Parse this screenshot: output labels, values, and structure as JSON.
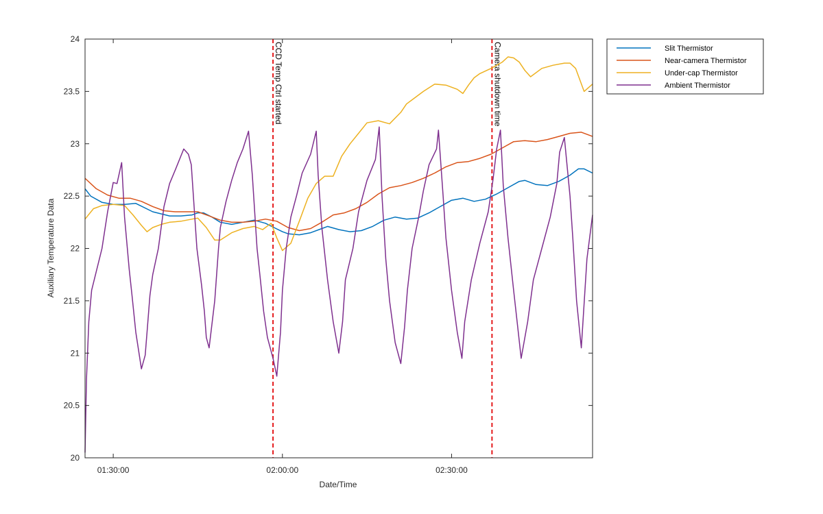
{
  "chart_data": {
    "type": "line",
    "title": "",
    "xlabel": "Date/Time",
    "ylabel": "Auxiliary Temperature Data",
    "xlim": [
      "01:25:00",
      "02:55:00"
    ],
    "ylim": [
      20,
      24
    ],
    "grid": false,
    "legend_position": "outside-top-right",
    "x_ticks": [
      {
        "time": "01:30:00",
        "label": "01:30:00"
      },
      {
        "time": "02:00:00",
        "label": "02:00:00"
      },
      {
        "time": "02:30:00",
        "label": "02:30:00"
      }
    ],
    "y_ticks": [
      {
        "value": 20,
        "label": "20"
      },
      {
        "value": 20.5,
        "label": "20.5"
      },
      {
        "value": 21,
        "label": "21"
      },
      {
        "value": 21.5,
        "label": "21.5"
      },
      {
        "value": 22,
        "label": "22"
      },
      {
        "value": 22.5,
        "label": "22.5"
      },
      {
        "value": 23,
        "label": "23"
      },
      {
        "value": 23.5,
        "label": "23.5"
      },
      {
        "value": 24,
        "label": "24"
      }
    ],
    "annotations": [
      {
        "time": "01:58:20",
        "label": "CCD Temp Ctrl started",
        "color": "#e41a1c"
      },
      {
        "time": "02:37:10",
        "label": "Camera shutdown time",
        "color": "#e41a1c"
      }
    ],
    "series": [
      {
        "name": "Slit Thermistor",
        "color": "#0072bd",
        "x": [
          "01:25:00",
          "01:26:00",
          "01:28:00",
          "01:30:00",
          "01:32:00",
          "01:34:00",
          "01:37:00",
          "01:40:00",
          "01:42:00",
          "01:44:00",
          "01:45:00",
          "01:46:00",
          "01:47:30",
          "01:49:00",
          "01:51:00",
          "01:53:00",
          "01:55:00",
          "01:57:00",
          "01:58:30",
          "02:00:00",
          "02:01:00",
          "02:03:00",
          "02:05:00",
          "02:07:00",
          "02:08:00",
          "02:10:00",
          "02:12:00",
          "02:14:00",
          "02:16:00",
          "02:18:00",
          "02:20:00",
          "02:22:00",
          "02:24:00",
          "02:26:00",
          "02:28:00",
          "02:30:00",
          "02:32:00",
          "02:34:00",
          "02:36:00",
          "02:38:00",
          "02:40:00",
          "02:42:00",
          "02:43:00",
          "02:45:00",
          "02:47:00",
          "02:49:00",
          "02:51:00",
          "02:52:30",
          "02:53:30",
          "02:55:00"
        ],
        "values": [
          22.57,
          22.5,
          22.44,
          22.42,
          22.42,
          22.43,
          22.35,
          22.31,
          22.31,
          22.32,
          22.34,
          22.34,
          22.3,
          22.25,
          22.23,
          22.25,
          22.27,
          22.24,
          22.2,
          22.16,
          22.14,
          22.13,
          22.15,
          22.19,
          22.21,
          22.18,
          22.16,
          22.17,
          22.21,
          22.27,
          22.3,
          22.28,
          22.29,
          22.34,
          22.4,
          22.46,
          22.48,
          22.45,
          22.47,
          22.52,
          22.58,
          22.64,
          22.65,
          22.61,
          22.6,
          22.64,
          22.7,
          22.76,
          22.76,
          22.72
        ]
      },
      {
        "name": "Near-camera Thermistor",
        "color": "#d95319",
        "x": [
          "01:25:00",
          "01:27:00",
          "01:29:00",
          "01:31:00",
          "01:33:00",
          "01:35:00",
          "01:37:00",
          "01:39:00",
          "01:41:00",
          "01:43:00",
          "01:45:00",
          "01:47:00",
          "01:49:00",
          "01:51:00",
          "01:53:00",
          "01:55:00",
          "01:57:00",
          "01:59:00",
          "02:01:00",
          "02:03:00",
          "02:05:00",
          "02:07:00",
          "02:09:00",
          "02:11:00",
          "02:13:00",
          "02:15:00",
          "02:17:00",
          "02:19:00",
          "02:21:00",
          "02:23:00",
          "02:25:00",
          "02:27:00",
          "02:29:00",
          "02:31:00",
          "02:33:00",
          "02:35:00",
          "02:37:00",
          "02:39:00",
          "02:41:00",
          "02:43:00",
          "02:45:00",
          "02:47:00",
          "02:49:00",
          "02:51:00",
          "02:53:00",
          "02:55:00"
        ],
        "values": [
          22.67,
          22.57,
          22.51,
          22.48,
          22.48,
          22.45,
          22.4,
          22.36,
          22.35,
          22.35,
          22.35,
          22.31,
          22.27,
          22.25,
          22.25,
          22.26,
          22.28,
          22.26,
          22.2,
          22.17,
          22.19,
          22.25,
          22.32,
          22.34,
          22.38,
          22.44,
          22.52,
          22.58,
          22.6,
          22.63,
          22.67,
          22.72,
          22.78,
          22.82,
          22.83,
          22.86,
          22.9,
          22.96,
          23.02,
          23.03,
          23.02,
          23.04,
          23.07,
          23.1,
          23.11,
          23.07
        ]
      },
      {
        "name": "Under-cap Thermistor",
        "color": "#edb120",
        "x": [
          "01:25:00",
          "01:26:30",
          "01:28:00",
          "01:30:00",
          "01:32:00",
          "01:33:30",
          "01:35:00",
          "01:36:00",
          "01:37:00",
          "01:38:30",
          "01:40:00",
          "01:42:00",
          "01:44:00",
          "01:45:00",
          "01:46:30",
          "01:48:00",
          "01:49:00",
          "01:51:00",
          "01:53:00",
          "01:55:00",
          "01:56:30",
          "01:58:00",
          "01:59:00",
          "02:00:00",
          "02:01:30",
          "02:03:00",
          "02:04:30",
          "02:06:00",
          "02:07:30",
          "02:09:00",
          "02:10:30",
          "02:12:00",
          "02:13:30",
          "02:15:00",
          "02:17:00",
          "02:19:00",
          "02:21:00",
          "02:22:00",
          "02:23:00",
          "02:25:00",
          "02:27:00",
          "02:29:00",
          "02:31:00",
          "02:32:00",
          "02:33:00",
          "02:34:00",
          "02:35:00",
          "02:37:00",
          "02:39:00",
          "02:40:00",
          "02:41:00",
          "02:42:00",
          "02:43:00",
          "02:44:00",
          "02:46:00",
          "02:48:00",
          "02:50:00",
          "02:51:00",
          "02:52:00",
          "02:53:30",
          "02:55:00"
        ],
        "values": [
          22.28,
          22.38,
          22.41,
          22.42,
          22.41,
          22.32,
          22.22,
          22.16,
          22.2,
          22.23,
          22.25,
          22.26,
          22.28,
          22.29,
          22.2,
          22.08,
          22.08,
          22.15,
          22.19,
          22.21,
          22.18,
          22.24,
          22.1,
          21.98,
          22.05,
          22.26,
          22.48,
          22.62,
          22.69,
          22.69,
          22.88,
          23.0,
          23.1,
          23.2,
          23.22,
          23.19,
          23.3,
          23.38,
          23.42,
          23.5,
          23.57,
          23.56,
          23.52,
          23.48,
          23.56,
          23.63,
          23.67,
          23.72,
          23.78,
          23.83,
          23.82,
          23.78,
          23.7,
          23.64,
          23.72,
          23.75,
          23.77,
          23.77,
          23.72,
          23.5,
          23.57
        ]
      },
      {
        "name": "Ambient Thermistor",
        "color": "#7e2f8e",
        "x": [
          "01:25:00",
          "01:25:15",
          "01:25:40",
          "01:26:10",
          "01:27:00",
          "01:28:00",
          "01:29:00",
          "01:30:00",
          "01:30:40",
          "01:31:30",
          "01:32:00",
          "01:32:50",
          "01:33:20",
          "01:34:00",
          "01:35:00",
          "01:35:40",
          "01:36:00",
          "01:36:30",
          "01:37:00",
          "01:38:00",
          "01:39:00",
          "01:40:00",
          "01:41:00",
          "01:42:30",
          "01:43:20",
          "01:43:50",
          "01:44:50",
          "01:45:40",
          "01:46:10",
          "01:46:30",
          "01:47:00",
          "01:48:00",
          "01:48:40",
          "01:49:00",
          "01:50:00",
          "01:51:00",
          "01:52:00",
          "01:53:00",
          "01:54:00",
          "01:54:40",
          "01:55:30",
          "01:56:00",
          "01:56:40",
          "01:57:20",
          "01:58:20",
          "01:59:00",
          "01:59:40",
          "02:00:00",
          "02:00:40",
          "02:01:30",
          "02:02:30",
          "02:03:30",
          "02:05:00",
          "02:06:00",
          "02:06:20",
          "02:07:00",
          "02:08:00",
          "02:09:00",
          "02:10:00",
          "02:10:40",
          "02:11:10",
          "02:12:30",
          "02:13:30",
          "02:15:00",
          "02:16:30",
          "02:17:10",
          "02:17:40",
          "02:18:20",
          "02:19:00",
          "02:20:00",
          "02:21:00",
          "02:21:40",
          "02:22:10",
          "02:23:00",
          "02:24:10",
          "02:25:00",
          "02:26:00",
          "02:27:20",
          "02:27:40",
          "02:28:30",
          "02:29:00",
          "02:30:00",
          "02:31:00",
          "02:31:50",
          "02:32:20",
          "02:33:30",
          "02:35:00",
          "02:36:30",
          "02:37:20",
          "02:38:00",
          "02:38:40",
          "02:39:10",
          "02:40:00",
          "02:41:00",
          "02:41:50",
          "02:42:20",
          "02:43:30",
          "02:44:30",
          "02:46:00",
          "02:47:30",
          "02:48:40",
          "02:49:10",
          "02:50:00",
          "02:51:00",
          "02:51:30",
          "02:52:10",
          "02:53:00",
          "02:54:00",
          "02:55:00"
        ],
        "values": [
          20.05,
          20.75,
          21.3,
          21.6,
          21.78,
          22.0,
          22.35,
          22.63,
          22.62,
          22.82,
          22.3,
          21.8,
          21.55,
          21.2,
          20.85,
          20.98,
          21.2,
          21.55,
          21.75,
          22.0,
          22.4,
          22.62,
          22.75,
          22.95,
          22.9,
          22.8,
          22.0,
          21.65,
          21.4,
          21.15,
          21.05,
          21.5,
          22.0,
          22.2,
          22.45,
          22.65,
          22.82,
          22.95,
          23.12,
          22.7,
          22.0,
          21.75,
          21.4,
          21.15,
          20.95,
          20.78,
          21.2,
          21.6,
          22.0,
          22.3,
          22.5,
          22.72,
          22.9,
          23.12,
          22.7,
          22.2,
          21.7,
          21.3,
          21.0,
          21.3,
          21.7,
          22.0,
          22.35,
          22.65,
          22.85,
          23.16,
          22.5,
          21.9,
          21.5,
          21.1,
          20.9,
          21.25,
          21.6,
          22.0,
          22.3,
          22.55,
          22.8,
          22.95,
          23.13,
          22.5,
          22.1,
          21.6,
          21.2,
          20.95,
          21.3,
          21.7,
          22.05,
          22.35,
          22.65,
          22.95,
          23.13,
          22.6,
          22.1,
          21.6,
          21.2,
          20.95,
          21.3,
          21.7,
          22.0,
          22.3,
          22.62,
          22.92,
          23.06,
          22.5,
          22.1,
          21.5,
          21.05,
          21.9,
          22.32
        ]
      }
    ]
  }
}
